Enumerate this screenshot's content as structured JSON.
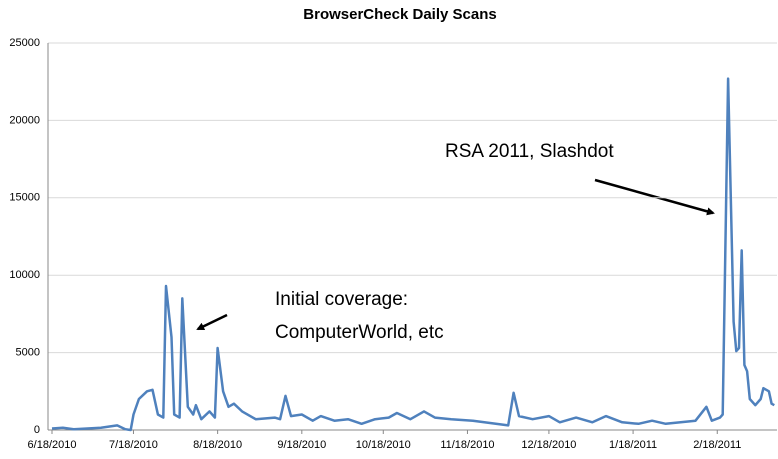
{
  "chart_data": {
    "type": "line",
    "title": "BrowserCheck Daily Scans",
    "x": [
      "6/18/2010",
      "6/22/2010",
      "6/26/2010",
      "7/1/2010",
      "7/6/2010",
      "7/12/2010",
      "7/15/2010",
      "7/17/2010",
      "7/18/2010",
      "7/20/2010",
      "7/23/2010",
      "7/25/2010",
      "7/27/2010",
      "7/29/2010",
      "7/30/2010",
      "8/1/2010",
      "8/2/2010",
      "8/4/2010",
      "8/5/2010",
      "8/7/2010",
      "8/9/2010",
      "8/10/2010",
      "8/12/2010",
      "8/15/2010",
      "8/17/2010",
      "8/18/2010",
      "8/20/2010",
      "8/22/2010",
      "8/24/2010",
      "8/27/2010",
      "9/1/2010",
      "9/8/2010",
      "9/10/2010",
      "9/12/2010",
      "9/14/2010",
      "9/18/2010",
      "9/22/2010",
      "9/25/2010",
      "9/30/2010",
      "10/5/2010",
      "10/10/2010",
      "10/15/2010",
      "10/20/2010",
      "10/23/2010",
      "10/28/2010",
      "11/2/2010",
      "11/6/2010",
      "11/12/2010",
      "11/20/2010",
      "12/3/2010",
      "12/5/2010",
      "12/7/2010",
      "12/12/2010",
      "12/18/2010",
      "12/22/2010",
      "12/28/2010",
      "1/3/2011",
      "1/8/2011",
      "1/14/2011",
      "1/20/2011",
      "1/25/2011",
      "1/30/2011",
      "2/10/2011",
      "2/14/2011",
      "2/16/2011",
      "2/19/2011",
      "2/20/2011",
      "2/22/2011",
      "2/24/2011",
      "2/25/2011",
      "2/26/2011",
      "2/27/2011",
      "2/28/2011",
      "3/1/2011",
      "3/2/2011",
      "3/4/2011",
      "3/6/2011",
      "3/7/2011",
      "3/9/2011",
      "3/10/2011",
      "3/11/2011"
    ],
    "series": [
      {
        "name": "Daily Scans",
        "color": "#4f81bd",
        "values": [
          100,
          150,
          50,
          100,
          150,
          300,
          50,
          0,
          1000,
          2000,
          2500,
          2600,
          1000,
          800,
          9300,
          6000,
          1000,
          800,
          8500,
          1500,
          1000,
          1600,
          700,
          1200,
          800,
          5300,
          2500,
          1500,
          1700,
          1200,
          700,
          800,
          700,
          2200,
          900,
          1000,
          600,
          900,
          600,
          700,
          400,
          700,
          800,
          1100,
          700,
          1200,
          800,
          700,
          600,
          300,
          2400,
          900,
          700,
          900,
          500,
          800,
          500,
          900,
          500,
          400,
          600,
          400,
          600,
          1500,
          600,
          800,
          1000,
          22700,
          7000,
          5100,
          5300,
          11600,
          4200,
          3800,
          2000,
          1600,
          2000,
          2700,
          2500,
          1700,
          1600
        ]
      }
    ],
    "xlim": [
      "6/18/2010",
      "3/12/2011"
    ],
    "xticks": [
      "6/18/2010",
      "7/18/2010",
      "8/18/2010",
      "9/18/2010",
      "10/18/2010",
      "11/18/2010",
      "12/18/2010",
      "1/18/2011",
      "2/18/2011"
    ],
    "ylim": [
      0,
      25000
    ],
    "yticks": [
      0,
      5000,
      10000,
      15000,
      20000,
      25000
    ],
    "grid": true,
    "annotations": [
      "Initial coverage:",
      "ComputerWorld, etc",
      "RSA 2011, Slashdot"
    ]
  }
}
